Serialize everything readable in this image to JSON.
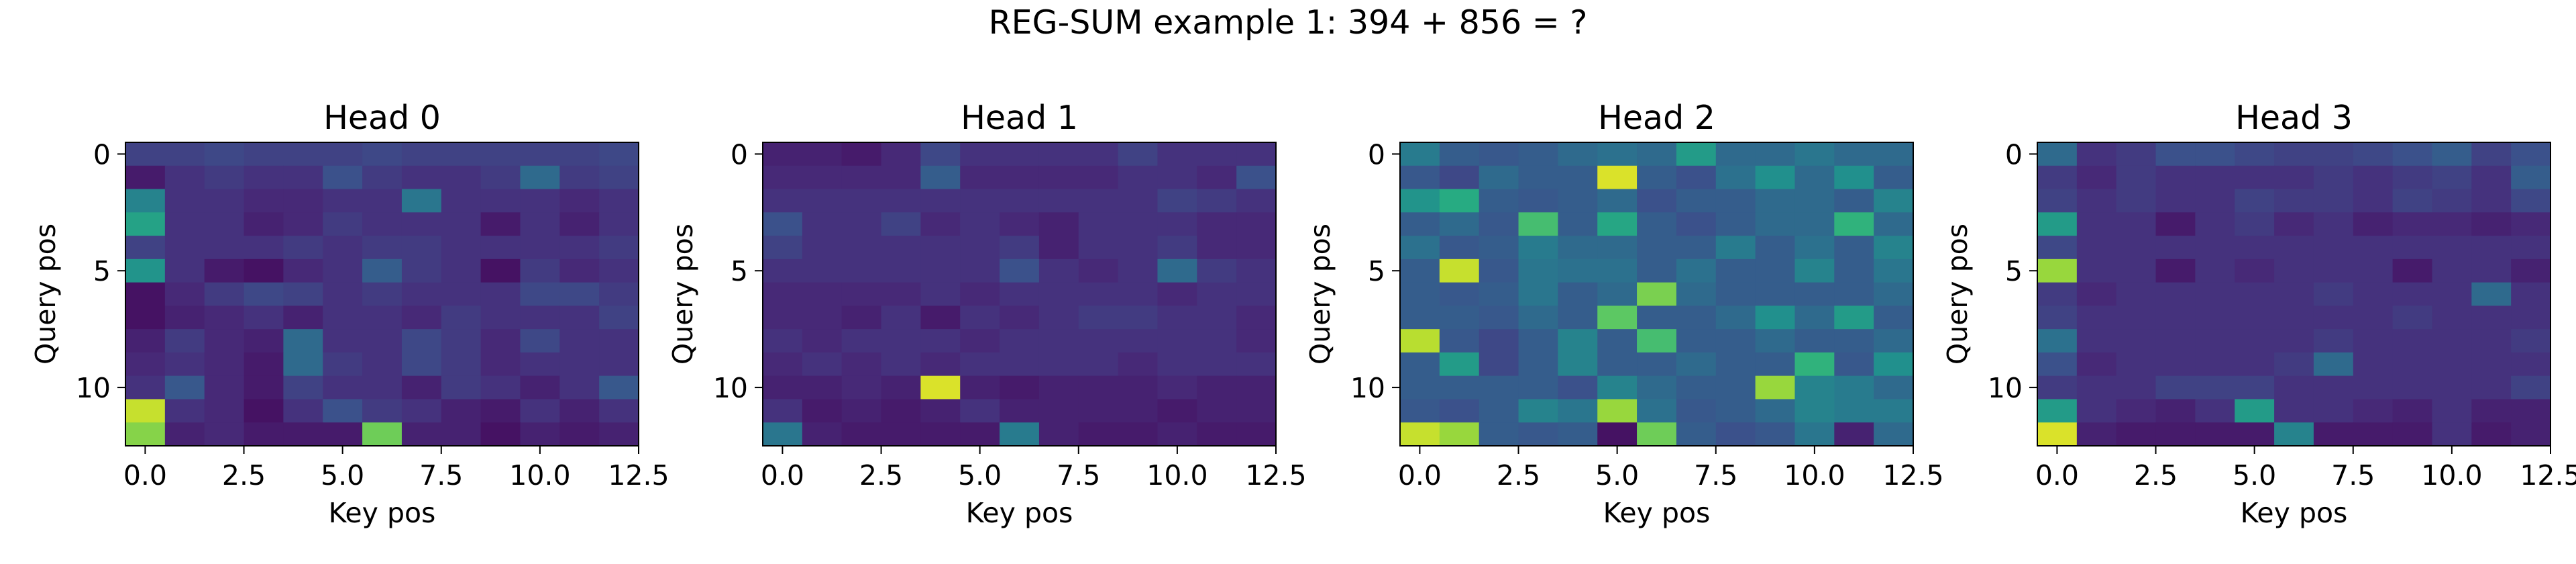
{
  "chart_data": {
    "suptitle": "REG-SUM example 1: 394 + 856 = ?",
    "type": "heatmap",
    "colormap": "viridis",
    "panels": [
      {
        "title": "Head 0",
        "xlabel": "Key pos",
        "ylabel": "Query pos",
        "xticks": [
          "0.0",
          "2.5",
          "5.0",
          "7.5",
          "10.0",
          "12.5"
        ],
        "yticks": [
          "0",
          "5",
          "10"
        ],
        "values": [
          [
            0.2,
            0.2,
            0.22,
            0.2,
            0.2,
            0.2,
            0.22,
            0.2,
            0.2,
            0.2,
            0.2,
            0.2,
            0.22
          ],
          [
            0.08,
            0.15,
            0.18,
            0.15,
            0.15,
            0.25,
            0.18,
            0.15,
            0.15,
            0.18,
            0.35,
            0.18,
            0.2
          ],
          [
            0.45,
            0.15,
            0.15,
            0.12,
            0.12,
            0.15,
            0.15,
            0.4,
            0.15,
            0.15,
            0.15,
            0.12,
            0.15
          ],
          [
            0.58,
            0.15,
            0.15,
            0.1,
            0.12,
            0.18,
            0.15,
            0.15,
            0.15,
            0.08,
            0.15,
            0.1,
            0.15
          ],
          [
            0.2,
            0.15,
            0.15,
            0.15,
            0.18,
            0.15,
            0.18,
            0.18,
            0.15,
            0.15,
            0.15,
            0.15,
            0.18
          ],
          [
            0.52,
            0.15,
            0.08,
            0.05,
            0.12,
            0.15,
            0.3,
            0.18,
            0.15,
            0.05,
            0.18,
            0.12,
            0.15
          ],
          [
            0.05,
            0.12,
            0.18,
            0.22,
            0.2,
            0.15,
            0.18,
            0.15,
            0.15,
            0.15,
            0.22,
            0.22,
            0.18
          ],
          [
            0.05,
            0.1,
            0.12,
            0.15,
            0.1,
            0.15,
            0.15,
            0.12,
            0.18,
            0.15,
            0.15,
            0.15,
            0.2
          ],
          [
            0.1,
            0.18,
            0.12,
            0.1,
            0.35,
            0.15,
            0.15,
            0.22,
            0.18,
            0.12,
            0.22,
            0.15,
            0.15
          ],
          [
            0.12,
            0.15,
            0.12,
            0.08,
            0.35,
            0.18,
            0.15,
            0.22,
            0.18,
            0.12,
            0.15,
            0.15,
            0.15
          ],
          [
            0.15,
            0.28,
            0.12,
            0.08,
            0.2,
            0.15,
            0.15,
            0.1,
            0.18,
            0.15,
            0.1,
            0.15,
            0.28
          ],
          [
            0.92,
            0.15,
            0.12,
            0.05,
            0.15,
            0.25,
            0.18,
            0.15,
            0.1,
            0.08,
            0.15,
            0.1,
            0.15
          ],
          [
            0.82,
            0.1,
            0.12,
            0.08,
            0.08,
            0.08,
            0.78,
            0.1,
            0.1,
            0.05,
            0.1,
            0.08,
            0.1
          ]
        ]
      },
      {
        "title": "Head 1",
        "xlabel": "Key pos",
        "ylabel": "Query pos",
        "xticks": [
          "0.0",
          "2.5",
          "5.0",
          "7.5",
          "10.0",
          "12.5"
        ],
        "yticks": [
          "0",
          "5",
          "10"
        ],
        "values": [
          [
            0.1,
            0.1,
            0.08,
            0.12,
            0.22,
            0.15,
            0.15,
            0.15,
            0.15,
            0.2,
            0.15,
            0.15,
            0.15
          ],
          [
            0.12,
            0.12,
            0.12,
            0.12,
            0.3,
            0.12,
            0.12,
            0.12,
            0.12,
            0.15,
            0.15,
            0.12,
            0.25
          ],
          [
            0.15,
            0.15,
            0.15,
            0.15,
            0.15,
            0.15,
            0.15,
            0.15,
            0.15,
            0.15,
            0.2,
            0.18,
            0.15
          ],
          [
            0.25,
            0.15,
            0.15,
            0.2,
            0.12,
            0.15,
            0.12,
            0.1,
            0.15,
            0.15,
            0.15,
            0.12,
            0.12
          ],
          [
            0.2,
            0.15,
            0.15,
            0.15,
            0.15,
            0.15,
            0.18,
            0.1,
            0.15,
            0.15,
            0.18,
            0.12,
            0.12
          ],
          [
            0.15,
            0.15,
            0.15,
            0.15,
            0.15,
            0.15,
            0.25,
            0.15,
            0.12,
            0.15,
            0.35,
            0.18,
            0.15
          ],
          [
            0.12,
            0.12,
            0.12,
            0.12,
            0.15,
            0.12,
            0.15,
            0.15,
            0.15,
            0.15,
            0.12,
            0.15,
            0.15
          ],
          [
            0.12,
            0.12,
            0.1,
            0.15,
            0.08,
            0.15,
            0.12,
            0.15,
            0.18,
            0.18,
            0.15,
            0.15,
            0.12
          ],
          [
            0.15,
            0.12,
            0.15,
            0.15,
            0.15,
            0.12,
            0.15,
            0.15,
            0.15,
            0.15,
            0.15,
            0.15,
            0.12
          ],
          [
            0.12,
            0.15,
            0.12,
            0.15,
            0.12,
            0.15,
            0.15,
            0.15,
            0.15,
            0.12,
            0.15,
            0.15,
            0.15
          ],
          [
            0.1,
            0.1,
            0.12,
            0.1,
            0.95,
            0.1,
            0.08,
            0.1,
            0.1,
            0.1,
            0.12,
            0.1,
            0.1
          ],
          [
            0.15,
            0.08,
            0.1,
            0.08,
            0.1,
            0.15,
            0.1,
            0.1,
            0.1,
            0.1,
            0.08,
            0.1,
            0.1
          ],
          [
            0.4,
            0.1,
            0.08,
            0.08,
            0.08,
            0.08,
            0.42,
            0.1,
            0.08,
            0.08,
            0.1,
            0.08,
            0.08
          ]
        ]
      },
      {
        "title": "Head 2",
        "xlabel": "Key pos",
        "ylabel": "Query pos",
        "xticks": [
          "0.0",
          "2.5",
          "5.0",
          "7.5",
          "10.0",
          "12.5"
        ],
        "yticks": [
          "0",
          "5",
          "10"
        ],
        "values": [
          [
            0.42,
            0.3,
            0.28,
            0.3,
            0.35,
            0.38,
            0.35,
            0.55,
            0.35,
            0.35,
            0.4,
            0.35,
            0.35
          ],
          [
            0.28,
            0.22,
            0.35,
            0.3,
            0.3,
            0.95,
            0.3,
            0.25,
            0.38,
            0.5,
            0.35,
            0.5,
            0.3
          ],
          [
            0.52,
            0.62,
            0.3,
            0.28,
            0.3,
            0.35,
            0.25,
            0.3,
            0.3,
            0.35,
            0.35,
            0.3,
            0.45
          ],
          [
            0.3,
            0.35,
            0.28,
            0.7,
            0.3,
            0.6,
            0.3,
            0.25,
            0.3,
            0.35,
            0.35,
            0.65,
            0.35
          ],
          [
            0.38,
            0.28,
            0.3,
            0.42,
            0.35,
            0.35,
            0.3,
            0.3,
            0.42,
            0.3,
            0.38,
            0.3,
            0.45
          ],
          [
            0.3,
            0.92,
            0.28,
            0.4,
            0.38,
            0.38,
            0.3,
            0.38,
            0.3,
            0.3,
            0.45,
            0.3,
            0.4
          ],
          [
            0.3,
            0.28,
            0.3,
            0.4,
            0.3,
            0.35,
            0.8,
            0.35,
            0.3,
            0.3,
            0.3,
            0.3,
            0.35
          ],
          [
            0.3,
            0.3,
            0.28,
            0.35,
            0.3,
            0.75,
            0.3,
            0.3,
            0.35,
            0.5,
            0.35,
            0.55,
            0.3
          ],
          [
            0.9,
            0.28,
            0.22,
            0.3,
            0.45,
            0.3,
            0.7,
            0.3,
            0.3,
            0.35,
            0.3,
            0.3,
            0.35
          ],
          [
            0.3,
            0.55,
            0.22,
            0.3,
            0.45,
            0.3,
            0.3,
            0.35,
            0.3,
            0.3,
            0.65,
            0.28,
            0.5
          ],
          [
            0.3,
            0.3,
            0.3,
            0.3,
            0.25,
            0.45,
            0.35,
            0.3,
            0.3,
            0.85,
            0.45,
            0.42,
            0.35
          ],
          [
            0.28,
            0.25,
            0.3,
            0.45,
            0.4,
            0.85,
            0.38,
            0.28,
            0.3,
            0.35,
            0.45,
            0.42,
            0.42
          ],
          [
            0.92,
            0.85,
            0.3,
            0.28,
            0.3,
            0.05,
            0.78,
            0.3,
            0.25,
            0.28,
            0.4,
            0.1,
            0.35
          ]
        ]
      },
      {
        "title": "Head 3",
        "xlabel": "Key pos",
        "ylabel": "Query pos",
        "xticks": [
          "0.0",
          "2.5",
          "5.0",
          "7.5",
          "10.0",
          "12.5"
        ],
        "yticks": [
          "0",
          "5",
          "10"
        ],
        "values": [
          [
            0.35,
            0.15,
            0.18,
            0.25,
            0.25,
            0.22,
            0.2,
            0.2,
            0.22,
            0.25,
            0.3,
            0.2,
            0.25
          ],
          [
            0.18,
            0.12,
            0.18,
            0.15,
            0.15,
            0.15,
            0.15,
            0.18,
            0.15,
            0.18,
            0.2,
            0.15,
            0.3
          ],
          [
            0.2,
            0.15,
            0.18,
            0.15,
            0.15,
            0.2,
            0.18,
            0.18,
            0.15,
            0.2,
            0.18,
            0.15,
            0.22
          ],
          [
            0.55,
            0.15,
            0.15,
            0.08,
            0.15,
            0.18,
            0.12,
            0.15,
            0.1,
            0.12,
            0.12,
            0.1,
            0.12
          ],
          [
            0.22,
            0.15,
            0.15,
            0.15,
            0.15,
            0.15,
            0.15,
            0.15,
            0.15,
            0.15,
            0.15,
            0.15,
            0.15
          ],
          [
            0.85,
            0.15,
            0.15,
            0.08,
            0.15,
            0.12,
            0.15,
            0.15,
            0.15,
            0.08,
            0.15,
            0.15,
            0.1
          ],
          [
            0.18,
            0.12,
            0.15,
            0.15,
            0.15,
            0.15,
            0.15,
            0.18,
            0.15,
            0.15,
            0.15,
            0.35,
            0.15
          ],
          [
            0.2,
            0.15,
            0.15,
            0.15,
            0.15,
            0.15,
            0.15,
            0.15,
            0.15,
            0.18,
            0.15,
            0.15,
            0.15
          ],
          [
            0.38,
            0.15,
            0.15,
            0.15,
            0.15,
            0.15,
            0.15,
            0.18,
            0.15,
            0.15,
            0.15,
            0.15,
            0.18
          ],
          [
            0.25,
            0.12,
            0.15,
            0.15,
            0.15,
            0.15,
            0.18,
            0.35,
            0.15,
            0.15,
            0.15,
            0.15,
            0.15
          ],
          [
            0.18,
            0.15,
            0.15,
            0.2,
            0.2,
            0.2,
            0.15,
            0.15,
            0.15,
            0.15,
            0.15,
            0.15,
            0.2
          ],
          [
            0.55,
            0.15,
            0.12,
            0.1,
            0.15,
            0.55,
            0.15,
            0.15,
            0.12,
            0.1,
            0.15,
            0.1,
            0.1
          ],
          [
            0.95,
            0.1,
            0.08,
            0.08,
            0.08,
            0.08,
            0.45,
            0.08,
            0.08,
            0.08,
            0.15,
            0.08,
            0.1
          ]
        ]
      }
    ]
  }
}
